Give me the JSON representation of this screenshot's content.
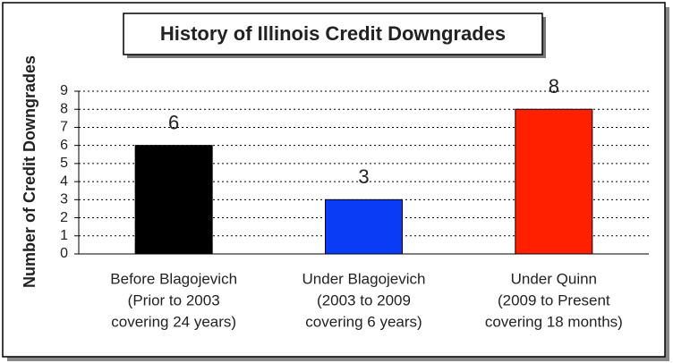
{
  "chart_data": {
    "type": "bar",
    "title": "History of Illinois Credit Downgrades",
    "y_label": "Number of Credit Downgrades",
    "categories": [
      [
        "Before Blagojevich",
        "(Prior to 2003",
        "covering 24 years)"
      ],
      [
        "Under Blagojevich",
        "(2003 to 2009",
        "covering 6 years)"
      ],
      [
        "Under Quinn",
        "(2009 to Present",
        "covering 18 months)"
      ]
    ],
    "values": [
      6,
      3,
      8
    ],
    "colors": [
      "#000000",
      "#0a3cf5",
      "#ff2000"
    ],
    "ylim": [
      0,
      9
    ],
    "yticks": [
      0,
      1,
      2,
      3,
      4,
      5,
      6,
      7,
      8,
      9
    ],
    "grid": true
  }
}
